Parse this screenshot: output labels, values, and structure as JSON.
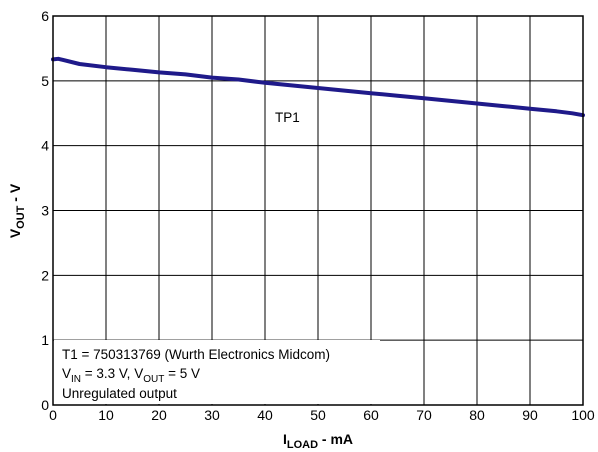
{
  "chart_data": {
    "type": "line",
    "x_axis": {
      "label_main": "I",
      "label_sub": "LOAD",
      "label_suffix": " - mA",
      "xlim": [
        0,
        100
      ],
      "ticks": [
        "0",
        "10",
        "20",
        "30",
        "40",
        "50",
        "60",
        "70",
        "80",
        "90",
        "100"
      ]
    },
    "y_axis": {
      "label_main": "V",
      "label_sub": "OUT",
      "label_suffix": " - V",
      "ylim": [
        0,
        6
      ],
      "ticks": [
        "0",
        "1",
        "2",
        "3",
        "4",
        "5",
        "6"
      ]
    },
    "grid": true,
    "series": [
      {
        "name": "TP1",
        "color": "#1f1a8a",
        "x": [
          0,
          1,
          2,
          5,
          10,
          15,
          20,
          25,
          30,
          35,
          40,
          45,
          50,
          55,
          60,
          65,
          70,
          75,
          80,
          85,
          90,
          95,
          98,
          100
        ],
        "y": [
          5.33,
          5.34,
          5.32,
          5.26,
          5.21,
          5.17,
          5.13,
          5.1,
          5.05,
          5.02,
          4.97,
          4.93,
          4.89,
          4.85,
          4.81,
          4.77,
          4.73,
          4.69,
          4.65,
          4.61,
          4.57,
          4.53,
          4.5,
          4.47
        ]
      }
    ],
    "series_label": "TP1",
    "annotations": {
      "line1": "T1 = 750313769 (Wurth Electronics Midcom)",
      "line2": {
        "v_main": "V",
        "v_in_sub": "IN",
        "v_in_value": " = 3.3 V, ",
        "v_out_sub": "OUT",
        "v_out_value": " = 5 V"
      },
      "line3": "Unregulated output"
    }
  }
}
